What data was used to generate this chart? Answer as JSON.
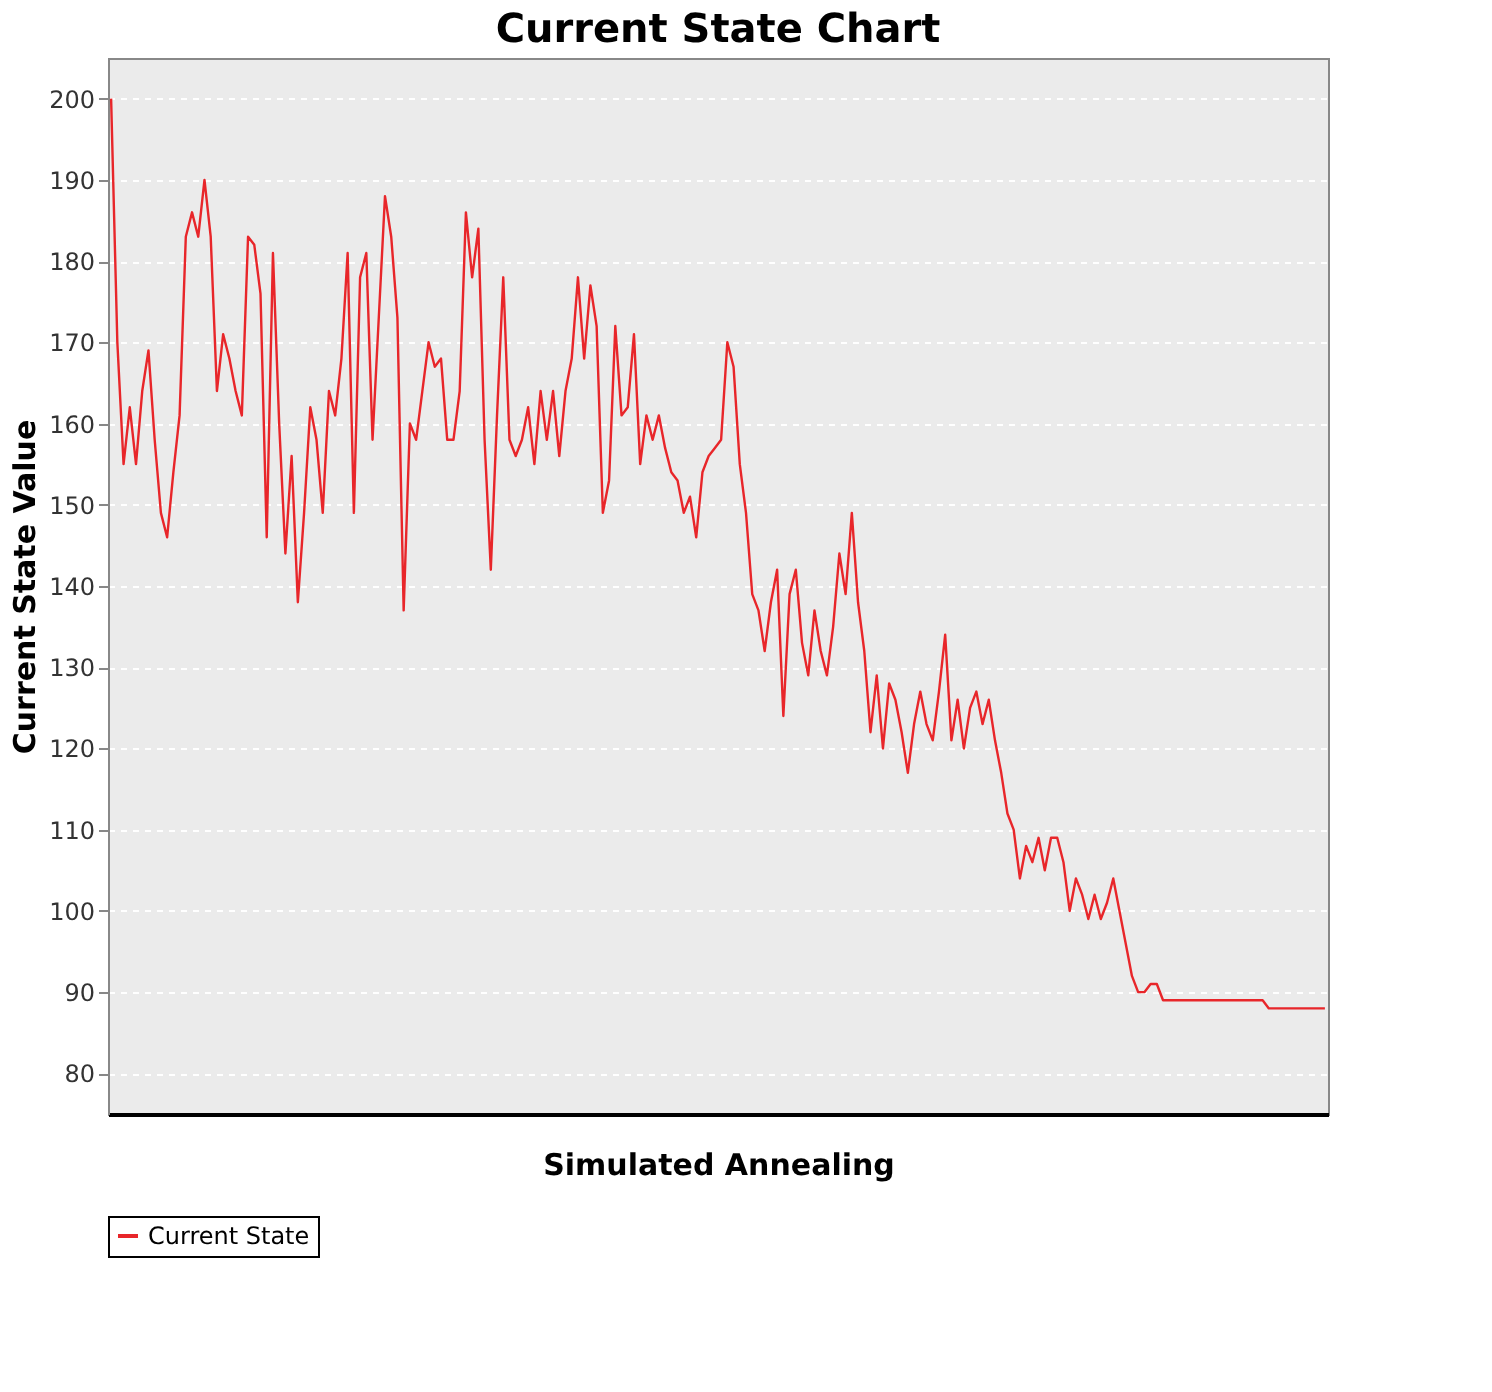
{
  "chart_data": {
    "type": "line",
    "title": "Current State Chart",
    "xlabel": "Simulated Annealing",
    "ylabel": "Current State Value",
    "ylim": [
      75,
      205
    ],
    "yticks": [
      80,
      90,
      100,
      110,
      120,
      130,
      140,
      150,
      160,
      170,
      180,
      190,
      200
    ],
    "grid": "y",
    "legend": "bottom",
    "tick_labels": "y",
    "marker": "none",
    "line_style": "solid",
    "categories": [
      null,
      null,
      null,
      null,
      null,
      null,
      null,
      null,
      null,
      null,
      null,
      null,
      null,
      null,
      null,
      null,
      null,
      null,
      null,
      null,
      null,
      null,
      null,
      null,
      null,
      null,
      null,
      null,
      null,
      null,
      null,
      null,
      null,
      null,
      null,
      null,
      null,
      null,
      null,
      null,
      null,
      null,
      null,
      null,
      null,
      null,
      null,
      null,
      null,
      null,
      null,
      null,
      null,
      null,
      null,
      null,
      null,
      null,
      null,
      null,
      null,
      null,
      null,
      null,
      null,
      null,
      null,
      null,
      null,
      null,
      null,
      null,
      null,
      null,
      null,
      null,
      null,
      null,
      null,
      null,
      null,
      null,
      null,
      null,
      null,
      null,
      null,
      null,
      null,
      null,
      null,
      null,
      null,
      null,
      null,
      null,
      null,
      null,
      null,
      null,
      null,
      null,
      null,
      null,
      null,
      null,
      null,
      null,
      null,
      null,
      null,
      null,
      null,
      null,
      null,
      null,
      null,
      null,
      null,
      null,
      null,
      null,
      null,
      null,
      null,
      null,
      null,
      null,
      null,
      null,
      null,
      null,
      null,
      null,
      null,
      null,
      null,
      null,
      null,
      null,
      null,
      null,
      null,
      null,
      null,
      null,
      null,
      null,
      null,
      null,
      null,
      null,
      null,
      null,
      null,
      null,
      null,
      null,
      null,
      null,
      null,
      null,
      null,
      null,
      null,
      null,
      null,
      null,
      null,
      null,
      null,
      null,
      null,
      null,
      null,
      null,
      null,
      null,
      null,
      null,
      null,
      null,
      null,
      null,
      null,
      null,
      null,
      null,
      null,
      null,
      null,
      null,
      null,
      null,
      null,
      null
    ],
    "series": [
      {
        "name": "Current State",
        "color": "#e8262a",
        "values": [
          200,
          170,
          155,
          162,
          155,
          164,
          169,
          158,
          149,
          146,
          154,
          161,
          183,
          186,
          183,
          190,
          183,
          164,
          171,
          168,
          164,
          161,
          183,
          182,
          176,
          146,
          181,
          160,
          144,
          156,
          138,
          149,
          162,
          158,
          149,
          164,
          161,
          168,
          181,
          149,
          178,
          181,
          158,
          173,
          188,
          183,
          173,
          137,
          160,
          158,
          164,
          170,
          167,
          168,
          158,
          158,
          164,
          186,
          178,
          184,
          158,
          142,
          161,
          178,
          158,
          156,
          158,
          162,
          155,
          164,
          158,
          164,
          156,
          164,
          168,
          178,
          168,
          177,
          172,
          149,
          153,
          172,
          161,
          162,
          171,
          155,
          161,
          158,
          161,
          157,
          154,
          153,
          149,
          151,
          146,
          154,
          156,
          157,
          158,
          170,
          167,
          155,
          149,
          139,
          137,
          132,
          138,
          142,
          124,
          139,
          142,
          133,
          129,
          137,
          132,
          129,
          135,
          144,
          139,
          149,
          138,
          132,
          122,
          129,
          120,
          128,
          126,
          122,
          117,
          123,
          127,
          123,
          121,
          127,
          134,
          121,
          126,
          120,
          125,
          127,
          123,
          126,
          121,
          117,
          112,
          110,
          104,
          108,
          106,
          109,
          105,
          109,
          109,
          106,
          100,
          104,
          102,
          99,
          102,
          99,
          101,
          104,
          100,
          96,
          92,
          90,
          90,
          91,
          91,
          89,
          89,
          89,
          89,
          89,
          89,
          89,
          89,
          89,
          89,
          89,
          89,
          89,
          89,
          89,
          89,
          89,
          88,
          88,
          88,
          88,
          88,
          88,
          88,
          88,
          88,
          88
        ]
      }
    ]
  }
}
